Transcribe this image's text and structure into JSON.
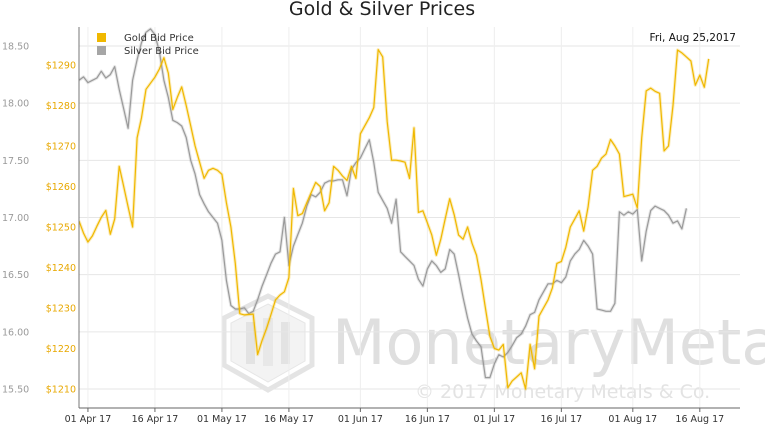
{
  "chart_data": {
    "type": "line",
    "title": "Gold & Silver Prices",
    "date_label": "Fri, Aug 25,2017",
    "watermark": {
      "brand": "MonetaryMetals",
      "copyright": "© 2017 Monetary Metals & Co."
    },
    "x_ticks": [
      "01 Apr 17",
      "16 Apr 17",
      "01 May 17",
      "16 May 17",
      "01 Jun 17",
      "16 Jun 17",
      "01 Jul 17",
      "16 Jul 17",
      "01 Aug 17",
      "16 Aug 17"
    ],
    "x_tick_days": [
      2,
      17,
      32,
      47,
      63,
      78,
      93,
      108,
      124,
      139
    ],
    "x_range": [
      0,
      148
    ],
    "silver_axis": {
      "range": [
        15.38,
        18.65
      ],
      "ticks": [
        "18.50",
        "18.00",
        "17.50",
        "17.00",
        "16.50",
        "16.00",
        "15.50"
      ],
      "color": "#9a9a9a"
    },
    "gold_axis": {
      "range": [
        1206.8,
        1296.0
      ],
      "ticks": [
        "$1290",
        "$1280",
        "$1270",
        "$1260",
        "$1250",
        "$1240",
        "$1230",
        "$1220",
        "$1210"
      ],
      "color": "#e8a800"
    },
    "series": [
      {
        "name": "Gold Bid Price",
        "color": "#f0b800",
        "axis": "gold",
        "points": [
          [
            0,
            1251.5
          ],
          [
            1,
            1248.5
          ],
          [
            2,
            1246.3
          ],
          [
            3,
            1247.8
          ],
          [
            4,
            1250.2
          ],
          [
            5,
            1252.4
          ],
          [
            6,
            1254.1
          ],
          [
            7,
            1248.2
          ],
          [
            8,
            1252
          ],
          [
            9,
            1265
          ],
          [
            10,
            1260
          ],
          [
            11,
            1255
          ],
          [
            12,
            1250
          ],
          [
            13,
            1272
          ],
          [
            14,
            1277
          ],
          [
            15,
            1284
          ],
          [
            16,
            1285.5
          ],
          [
            17,
            1287
          ],
          [
            18,
            1289
          ],
          [
            19,
            1291.8
          ],
          [
            20,
            1288
          ],
          [
            21,
            1279
          ],
          [
            22,
            1282
          ],
          [
            23,
            1284.6
          ],
          [
            24,
            1280
          ],
          [
            25,
            1275
          ],
          [
            26,
            1270
          ],
          [
            27,
            1266
          ],
          [
            28,
            1262
          ],
          [
            29,
            1264
          ],
          [
            30,
            1264.5
          ],
          [
            31,
            1264
          ],
          [
            32,
            1263
          ],
          [
            33,
            1256
          ],
          [
            34,
            1250
          ],
          [
            35,
            1241
          ],
          [
            36,
            1228.6
          ],
          [
            37,
            1228.3
          ],
          [
            38,
            1228.4
          ],
          [
            39,
            1228.5
          ],
          [
            40,
            1218.5
          ],
          [
            41,
            1222
          ],
          [
            42,
            1225
          ],
          [
            43,
            1228.4
          ],
          [
            44,
            1232
          ],
          [
            45,
            1233.2
          ],
          [
            46,
            1234
          ],
          [
            47,
            1237.5
          ],
          [
            48,
            1259.5
          ],
          [
            49,
            1252.8
          ],
          [
            50,
            1253.3
          ],
          [
            51,
            1256
          ],
          [
            52,
            1258.5
          ],
          [
            53,
            1261
          ],
          [
            54,
            1260
          ],
          [
            55,
            1254
          ],
          [
            56,
            1256
          ],
          [
            57,
            1265
          ],
          [
            58,
            1264
          ],
          [
            59,
            1262.6
          ],
          [
            60,
            1261.5
          ],
          [
            61,
            1265
          ],
          [
            62,
            1262
          ],
          [
            63,
            1273
          ],
          [
            64,
            1275
          ],
          [
            65,
            1277
          ],
          [
            66,
            1279.5
          ],
          [
            67,
            1293.8
          ],
          [
            68,
            1292
          ],
          [
            69,
            1276
          ],
          [
            70,
            1266.5
          ],
          [
            71,
            1266.5
          ],
          [
            72,
            1266.3
          ],
          [
            73,
            1266
          ],
          [
            74,
            1262
          ],
          [
            75,
            1274.5
          ],
          [
            76,
            1253.6
          ],
          [
            77,
            1254
          ],
          [
            78,
            1251
          ],
          [
            79,
            1248
          ],
          [
            80,
            1243
          ],
          [
            81,
            1247
          ],
          [
            82,
            1252
          ],
          [
            83,
            1257
          ],
          [
            84,
            1253
          ],
          [
            85,
            1248
          ],
          [
            86,
            1247
          ],
          [
            87,
            1250
          ],
          [
            88,
            1246
          ],
          [
            89,
            1243
          ],
          [
            90,
            1237
          ],
          [
            91,
            1230
          ],
          [
            92,
            1223
          ],
          [
            93,
            1220
          ],
          [
            94,
            1219.6
          ],
          [
            95,
            1221
          ],
          [
            96,
            1210.3
          ],
          [
            97,
            1212
          ],
          [
            98,
            1213
          ],
          [
            99,
            1214
          ],
          [
            100,
            1210
          ],
          [
            101,
            1221
          ],
          [
            102,
            1215
          ],
          [
            103,
            1228
          ],
          [
            104,
            1230
          ],
          [
            105,
            1232
          ],
          [
            106,
            1235
          ],
          [
            107,
            1241
          ],
          [
            108,
            1241.5
          ],
          [
            109,
            1245
          ],
          [
            110,
            1250
          ],
          [
            111,
            1252
          ],
          [
            112,
            1254
          ],
          [
            113,
            1249
          ],
          [
            114,
            1255
          ],
          [
            115,
            1264
          ],
          [
            116,
            1265
          ],
          [
            117,
            1267
          ],
          [
            118,
            1268
          ],
          [
            119,
            1271.6
          ],
          [
            120,
            1270
          ],
          [
            121,
            1268
          ],
          [
            122,
            1257.5
          ],
          [
            123,
            1257.8
          ],
          [
            124,
            1258.1
          ],
          [
            125,
            1254.7
          ],
          [
            126,
            1272
          ],
          [
            127,
            1283.6
          ],
          [
            128,
            1284.3
          ],
          [
            129,
            1283.5
          ],
          [
            130,
            1283
          ],
          [
            131,
            1268.8
          ],
          [
            132,
            1270
          ],
          [
            133,
            1280
          ],
          [
            134,
            1293.7
          ],
          [
            135,
            1293
          ],
          [
            136,
            1292
          ],
          [
            137,
            1291
          ],
          [
            138,
            1285
          ],
          [
            139,
            1287.5
          ],
          [
            140,
            1284.5
          ],
          [
            141,
            1291.5
          ]
        ]
      },
      {
        "name": "Silver Bid Price",
        "color": "#9a9a9a",
        "axis": "silver",
        "points": [
          [
            0,
            18.2
          ],
          [
            1,
            18.23
          ],
          [
            2,
            18.18
          ],
          [
            3,
            18.2
          ],
          [
            4,
            18.22
          ],
          [
            5,
            18.28
          ],
          [
            6,
            18.22
          ],
          [
            7,
            18.25
          ],
          [
            8,
            18.32
          ],
          [
            9,
            18.12
          ],
          [
            10,
            17.95
          ],
          [
            11,
            17.78
          ],
          [
            12,
            18.2
          ],
          [
            13,
            18.38
          ],
          [
            14,
            18.53
          ],
          [
            15,
            18.62
          ],
          [
            16,
            18.65
          ],
          [
            17,
            18.6
          ],
          [
            18,
            18.45
          ],
          [
            19,
            18.2
          ],
          [
            20,
            18.05
          ],
          [
            21,
            17.85
          ],
          [
            22,
            17.83
          ],
          [
            23,
            17.8
          ],
          [
            24,
            17.7
          ],
          [
            25,
            17.5
          ],
          [
            26,
            17.38
          ],
          [
            27,
            17.2
          ],
          [
            28,
            17.12
          ],
          [
            29,
            17.05
          ],
          [
            30,
            17.0
          ],
          [
            31,
            16.95
          ],
          [
            32,
            16.8
          ],
          [
            33,
            16.45
          ],
          [
            34,
            16.23
          ],
          [
            35,
            16.2
          ],
          [
            36,
            16.2
          ],
          [
            37,
            16.21
          ],
          [
            38,
            16.16
          ],
          [
            39,
            16.18
          ],
          [
            40,
            16.28
          ],
          [
            41,
            16.4
          ],
          [
            42,
            16.5
          ],
          [
            43,
            16.6
          ],
          [
            44,
            16.68
          ],
          [
            45,
            16.7
          ],
          [
            46,
            17.0
          ],
          [
            47,
            16.58
          ],
          [
            48,
            16.75
          ],
          [
            49,
            16.85
          ],
          [
            50,
            16.95
          ],
          [
            51,
            17.1
          ],
          [
            52,
            17.2
          ],
          [
            53,
            17.18
          ],
          [
            54,
            17.22
          ],
          [
            55,
            17.3
          ],
          [
            56,
            17.32
          ],
          [
            57,
            17.32
          ],
          [
            58,
            17.33
          ],
          [
            59,
            17.33
          ],
          [
            60,
            17.19
          ],
          [
            61,
            17.42
          ],
          [
            62,
            17.48
          ],
          [
            63,
            17.52
          ],
          [
            64,
            17.6
          ],
          [
            65,
            17.68
          ],
          [
            66,
            17.48
          ],
          [
            67,
            17.22
          ],
          [
            68,
            17.15
          ],
          [
            69,
            17.08
          ],
          [
            70,
            16.95
          ],
          [
            71,
            17.16
          ],
          [
            72,
            16.7
          ],
          [
            73,
            16.66
          ],
          [
            74,
            16.62
          ],
          [
            75,
            16.58
          ],
          [
            76,
            16.46
          ],
          [
            77,
            16.4
          ],
          [
            78,
            16.55
          ],
          [
            79,
            16.62
          ],
          [
            80,
            16.58
          ],
          [
            81,
            16.52
          ],
          [
            82,
            16.55
          ],
          [
            83,
            16.72
          ],
          [
            84,
            16.68
          ],
          [
            85,
            16.5
          ],
          [
            86,
            16.3
          ],
          [
            87,
            16.12
          ],
          [
            88,
            15.98
          ],
          [
            89,
            15.92
          ],
          [
            90,
            15.87
          ],
          [
            91,
            15.6
          ],
          [
            92,
            15.6
          ],
          [
            93,
            15.72
          ],
          [
            94,
            15.8
          ],
          [
            95,
            15.78
          ],
          [
            96,
            15.82
          ],
          [
            97,
            15.88
          ],
          [
            98,
            15.95
          ],
          [
            99,
            15.98
          ],
          [
            100,
            16.05
          ],
          [
            101,
            16.15
          ],
          [
            102,
            16.17
          ],
          [
            103,
            16.28
          ],
          [
            104,
            16.35
          ],
          [
            105,
            16.42
          ],
          [
            106,
            16.42
          ],
          [
            107,
            16.45
          ],
          [
            108,
            16.43
          ],
          [
            109,
            16.48
          ],
          [
            110,
            16.62
          ],
          [
            111,
            16.68
          ],
          [
            112,
            16.72
          ],
          [
            113,
            16.8
          ],
          [
            114,
            16.75
          ],
          [
            115,
            16.68
          ],
          [
            116,
            16.2
          ],
          [
            117,
            16.19
          ],
          [
            118,
            16.18
          ],
          [
            119,
            16.18
          ],
          [
            120,
            16.25
          ],
          [
            121,
            17.05
          ],
          [
            122,
            17.02
          ],
          [
            123,
            17.05
          ],
          [
            124,
            17.03
          ],
          [
            125,
            17.07
          ],
          [
            126,
            16.62
          ],
          [
            127,
            16.88
          ],
          [
            128,
            17.06
          ],
          [
            129,
            17.1
          ],
          [
            130,
            17.08
          ],
          [
            131,
            17.06
          ],
          [
            132,
            17.02
          ],
          [
            133,
            16.95
          ],
          [
            134,
            16.97
          ],
          [
            135,
            16.9
          ],
          [
            136,
            17.08
          ]
        ]
      }
    ],
    "grid": true,
    "legend_position": "top-left"
  }
}
